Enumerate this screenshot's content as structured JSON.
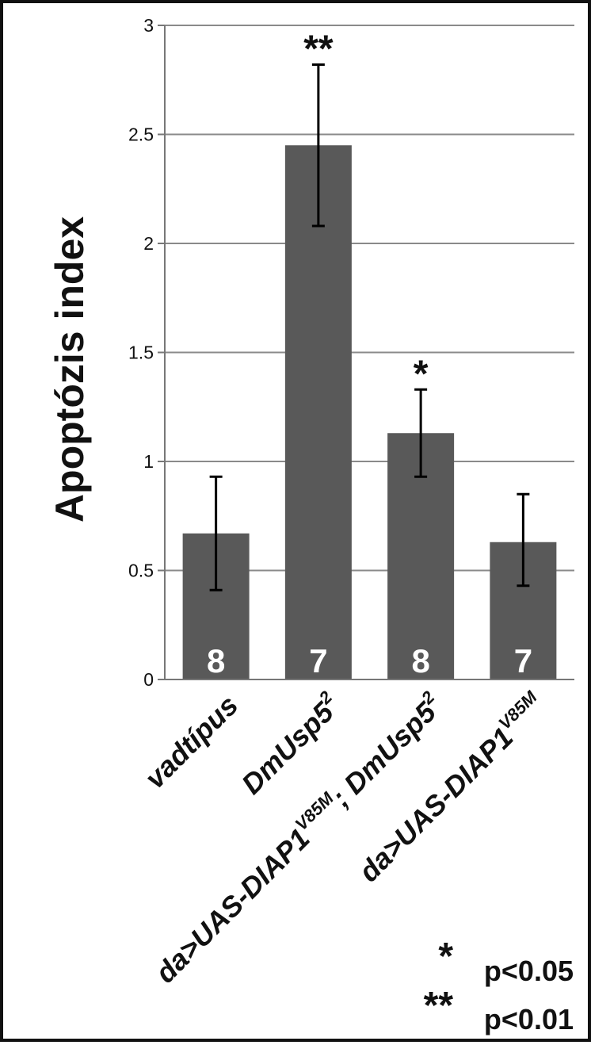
{
  "chart_data": {
    "type": "bar",
    "title": "",
    "ylabel": "Apoptózis index",
    "xlabel": "",
    "ylim": [
      0,
      3
    ],
    "yticks": [
      "0",
      "0.5",
      "1",
      "1.5",
      "2",
      "2.5",
      "3"
    ],
    "grid": true,
    "categories": [
      {
        "main": "vadtípus",
        "sup": "",
        "suffix": ""
      },
      {
        "main": "DmUsp5",
        "sup": "2",
        "suffix": ""
      },
      {
        "main": "da>UAS-DIAP1",
        "sup": "V85M",
        "suffix": "; DmUsp5",
        "sup2": "2"
      },
      {
        "main": "da>UAS-DIAP1",
        "sup": "V85M",
        "suffix": ""
      }
    ],
    "values": [
      0.67,
      2.45,
      1.13,
      0.63
    ],
    "error_low": [
      0.41,
      2.08,
      0.93,
      0.43
    ],
    "error_high": [
      0.93,
      2.82,
      1.33,
      0.85
    ],
    "counts": [
      "8",
      "7",
      "8",
      "7"
    ],
    "significance": [
      "",
      "**",
      "*",
      ""
    ],
    "bar_color": "#595959",
    "legend": [
      {
        "symbol": "*",
        "text": "p<0.05"
      },
      {
        "symbol": "**",
        "text": "p<0.01"
      }
    ]
  }
}
